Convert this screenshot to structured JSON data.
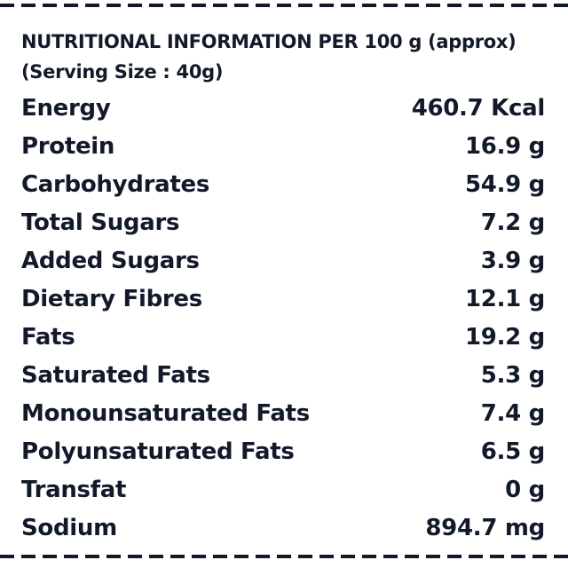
{
  "header": {
    "line1": "NUTRITIONAL INFORMATION PER 100 g (approx)",
    "line2": "(Serving Size : 40g)"
  },
  "nutrients": [
    {
      "name": "Energy",
      "value": "460.7 Kcal"
    },
    {
      "name": "Protein",
      "value": "16.9 g"
    },
    {
      "name": "Carbohydrates",
      "value": "54.9 g"
    },
    {
      "name": "Total Sugars",
      "value": "7.2 g"
    },
    {
      "name": "Added Sugars",
      "value": "3.9 g"
    },
    {
      "name": "Dietary Fibres",
      "value": "12.1 g"
    },
    {
      "name": "Fats",
      "value": "19.2 g"
    },
    {
      "name": "Saturated Fats",
      "value": "5.3 g"
    },
    {
      "name": "Monounsaturated Fats",
      "value": "7.4 g"
    },
    {
      "name": "Polyunsaturated Fats",
      "value": "6.5 g"
    },
    {
      "name": "Transfat",
      "value": "0 g"
    },
    {
      "name": "Sodium",
      "value": "894.7 mg"
    }
  ],
  "colors": {
    "text": "#121a2a",
    "background": "#ffffff",
    "border": "#121a2a"
  }
}
